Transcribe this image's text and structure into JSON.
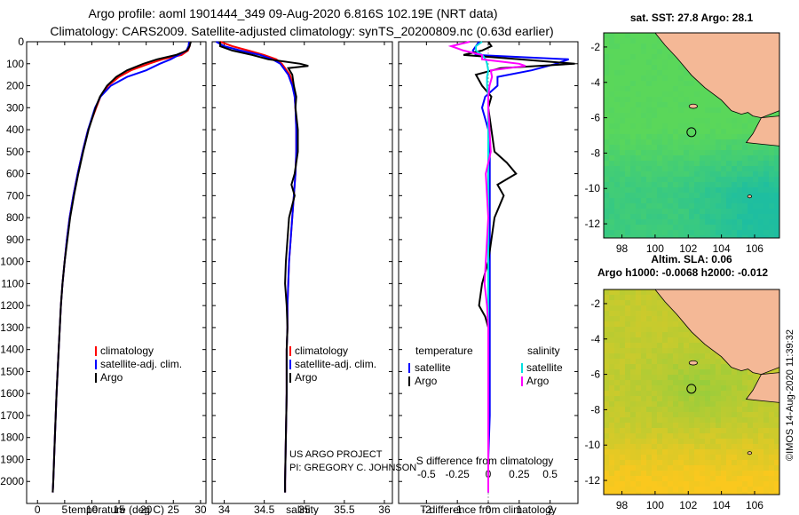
{
  "header": {
    "title": "Argo profile: aoml 1901444_349 09-Aug-2020 6.816S 102.19E (NRT data)",
    "subtitle": "Climatology: CARS2009. Satellite-adjusted climatology: synTS_20200809.nc (0.63d earlier)"
  },
  "credits": {
    "project": "US ARGO PROJECT",
    "pi": "PI: GREGORY C. JOHNSON",
    "imos": "©IMOS 14-Aug-2020 11:39:32"
  },
  "colors": {
    "climatology": "#ff0000",
    "satellite": "#0000ff",
    "argo": "#000000",
    "sat_salinity": "#00e0e0",
    "argo_salinity": "#ff00ff",
    "land": "#f4b896",
    "float_marker": "#000000"
  },
  "maps": [
    {
      "title": "sat. SST: 27.8 Argo: 28.1",
      "lon_ticks": [
        "98",
        "100",
        "102",
        "104",
        "106"
      ],
      "lat_ticks": [
        "-2",
        "-4",
        "-6",
        "-8",
        "-10",
        "-12"
      ],
      "float_lon": 102.19,
      "float_lat": -6.816,
      "field": "sst"
    },
    {
      "title": "Altim. SLA: 0.06",
      "title2": "Argo h1000: -0.0068 h2000: -0.012",
      "lon_ticks": [
        "98",
        "100",
        "102",
        "104",
        "106"
      ],
      "lat_ticks": [
        "-2",
        "-4",
        "-6",
        "-8",
        "-10",
        "-12"
      ],
      "float_lon": 102.19,
      "float_lat": -6.816,
      "field": "sla"
    }
  ],
  "chart_data": [
    {
      "type": "line",
      "xlabel": "temperature (deg C)",
      "ylabel": "",
      "xlim": [
        -2,
        31
      ],
      "ylim": [
        2100,
        0
      ],
      "xticks": [
        "0",
        "5",
        "10",
        "15",
        "20",
        "25",
        "30"
      ],
      "yticks": [
        "0",
        "100",
        "200",
        "300",
        "400",
        "500",
        "600",
        "700",
        "800",
        "900",
        "1000",
        "1100",
        "1200",
        "1300",
        "1400",
        "1500",
        "1600",
        "1700",
        "1800",
        "1900",
        "2000"
      ],
      "legend": [
        "climatology",
        "satellite-adj. clim.",
        "Argo"
      ],
      "legend_placement": "lower-right",
      "series": [
        {
          "name": "climatology",
          "depth": [
            0,
            20,
            40,
            60,
            80,
            100,
            130,
            160,
            200,
            250,
            300,
            400,
            500,
            600,
            700,
            800,
            900,
            1000,
            1100,
            1200,
            1400,
            1600,
            1800,
            2000,
            2050
          ],
          "values": [
            28.1,
            28.0,
            27.7,
            26.5,
            23.0,
            20.5,
            17.2,
            15.0,
            13.0,
            11.6,
            10.8,
            9.3,
            8.3,
            7.4,
            6.6,
            5.9,
            5.4,
            5.0,
            4.6,
            4.3,
            3.9,
            3.5,
            3.2,
            2.9,
            2.8
          ]
        },
        {
          "name": "satellite-adj. clim.",
          "depth": [
            0,
            20,
            40,
            60,
            80,
            100,
            130,
            160,
            200,
            250,
            300,
            400,
            500,
            600,
            700,
            800,
            900,
            1000,
            1100,
            1200,
            1400,
            1600,
            1800,
            2000,
            2050
          ],
          "values": [
            27.9,
            27.8,
            27.4,
            26.0,
            24.5,
            22.5,
            20.0,
            16.5,
            13.5,
            11.6,
            10.6,
            9.3,
            8.3,
            7.4,
            6.6,
            5.9,
            5.4,
            5.0,
            4.6,
            4.3,
            3.9,
            3.5,
            3.2,
            2.9,
            2.8
          ]
        },
        {
          "name": "Argo",
          "depth": [
            0,
            20,
            40,
            60,
            80,
            100,
            130,
            160,
            200,
            250,
            300,
            400,
            500,
            600,
            700,
            800,
            900,
            1000,
            1100,
            1200,
            1400,
            1600,
            1800,
            2000,
            2050
          ],
          "values": [
            28.2,
            28.0,
            27.5,
            25.5,
            22.0,
            19.5,
            16.5,
            14.5,
            12.8,
            11.5,
            10.7,
            9.4,
            8.4,
            7.5,
            6.7,
            6.0,
            5.5,
            5.0,
            4.6,
            4.3,
            3.9,
            3.5,
            3.2,
            2.9,
            2.8
          ]
        }
      ]
    },
    {
      "type": "line",
      "xlabel": "salinity",
      "ylabel": "",
      "xlim": [
        33.85,
        36.1
      ],
      "ylim": [
        2100,
        0
      ],
      "xticks": [
        "34",
        "34.5",
        "35",
        "35.5",
        "36"
      ],
      "legend": [
        "climatology",
        "satellite-adj. clim.",
        "Argo"
      ],
      "legend_placement": "lower-right",
      "series": [
        {
          "name": "climatology",
          "depth": [
            0,
            20,
            40,
            60,
            80,
            100,
            120,
            150,
            200,
            250,
            300,
            400,
            500,
            600,
            700,
            800,
            900,
            1000,
            1100,
            1200,
            1300,
            1400,
            1600,
            1800,
            2000,
            2050
          ],
          "values": [
            33.95,
            34.1,
            34.3,
            34.5,
            34.65,
            34.72,
            34.76,
            34.82,
            34.86,
            34.88,
            34.89,
            34.9,
            34.9,
            34.89,
            34.87,
            34.85,
            34.83,
            34.81,
            34.8,
            34.79,
            34.79,
            34.78,
            34.78,
            34.77,
            34.76,
            34.76
          ]
        },
        {
          "name": "satellite-adj. clim.",
          "depth": [
            0,
            20,
            40,
            60,
            80,
            100,
            120,
            150,
            200,
            250,
            300,
            400,
            500,
            600,
            700,
            800,
            900,
            1000,
            1100,
            1200,
            1300,
            1400,
            1600,
            1800,
            2000,
            2050
          ],
          "values": [
            33.9,
            34.0,
            34.2,
            34.45,
            34.6,
            34.7,
            34.74,
            34.8,
            34.85,
            34.88,
            34.89,
            34.9,
            34.9,
            34.89,
            34.87,
            34.85,
            34.83,
            34.81,
            34.8,
            34.79,
            34.79,
            34.78,
            34.78,
            34.77,
            34.76,
            34.76
          ]
        },
        {
          "name": "Argo",
          "depth": [
            0,
            20,
            40,
            60,
            80,
            100,
            110,
            120,
            150,
            200,
            250,
            300,
            400,
            500,
            600,
            650,
            700,
            800,
            900,
            1000,
            1100,
            1200,
            1300,
            1400,
            1600,
            1800,
            2000,
            2050
          ],
          "values": [
            33.95,
            33.95,
            34.1,
            34.35,
            34.55,
            34.95,
            35.05,
            34.8,
            34.85,
            34.87,
            34.9,
            34.89,
            34.92,
            34.92,
            34.88,
            34.84,
            34.88,
            34.81,
            34.79,
            34.77,
            34.76,
            34.78,
            34.79,
            34.78,
            34.78,
            34.77,
            34.76,
            34.76
          ]
        }
      ]
    },
    {
      "type": "line",
      "xlabel": "T difference from climatology",
      "xlabel_top": "S difference from climatology",
      "ylabel": "",
      "xlim": [
        -2.9,
        2.9
      ],
      "ylim": [
        2100,
        0
      ],
      "xticks": [
        "-2",
        "-1",
        "0",
        "1",
        "2"
      ],
      "xticks_top": [
        "-0.5",
        "-0.25",
        "0",
        "0.25",
        "0.5"
      ],
      "legend_temperature_title": "temperature",
      "legend_salinity_title": "salinity",
      "legend_temperature": [
        "satellite",
        "Argo"
      ],
      "legend_salinity": [
        "satellite",
        "Argo"
      ],
      "legend_placement": "lower-center",
      "series": [
        {
          "name": "satellite",
          "group": "temperature",
          "depth": [
            0,
            20,
            40,
            60,
            80,
            100,
            130,
            160,
            200,
            250,
            300,
            400,
            500,
            700,
            900,
            1100,
            1300,
            1500,
            1700,
            1900,
            2050
          ],
          "values": [
            -0.3,
            -0.4,
            -0.5,
            -0.4,
            2.6,
            2.2,
            1.4,
            0.3,
            0.3,
            -0.1,
            -0.2,
            0.0,
            0.05,
            0.05,
            0.05,
            0.05,
            0.05,
            0.05,
            0.05,
            0.0,
            0.0
          ]
        },
        {
          "name": "Argo",
          "group": "temperature",
          "depth": [
            0,
            20,
            40,
            60,
            80,
            100,
            120,
            150,
            200,
            250,
            300,
            400,
            500,
            550,
            600,
            650,
            700,
            800,
            900,
            1000,
            1100,
            1200,
            1250,
            1300,
            1500,
            1700,
            1900,
            2050
          ],
          "values": [
            0.0,
            0.1,
            -0.2,
            -0.8,
            1.0,
            2.8,
            0.4,
            -0.4,
            -0.2,
            0.1,
            0.0,
            0.1,
            0.2,
            0.6,
            0.9,
            0.3,
            0.5,
            0.2,
            0.1,
            0.0,
            -0.2,
            -0.3,
            -0.1,
            0.0,
            0.0,
            0.0,
            0.0,
            0.0
          ]
        },
        {
          "name": "satellite",
          "group": "salinity",
          "depth": [
            0,
            20,
            40,
            60,
            80,
            100,
            130,
            160,
            200,
            250,
            300,
            400,
            500,
            700,
            900,
            1100,
            1300,
            1500,
            1700,
            1900,
            2050
          ],
          "values": [
            -0.05,
            -0.1,
            -0.1,
            -0.05,
            -0.02,
            -0.01,
            0.0,
            -0.01,
            -0.01,
            0.0,
            0.0,
            0.0,
            0.0,
            0.0,
            0.0,
            0.0,
            0.0,
            0.0,
            0.0,
            0.0,
            0.0
          ]
        },
        {
          "name": "Argo",
          "group": "salinity",
          "depth": [
            0,
            20,
            40,
            60,
            80,
            100,
            110,
            130,
            160,
            200,
            250,
            300,
            400,
            500,
            600,
            700,
            800,
            900,
            1000,
            1100,
            1200,
            1300,
            1400,
            1600,
            1800,
            2000,
            2050
          ],
          "values": [
            -0.15,
            -0.3,
            -0.2,
            -0.05,
            -0.05,
            0.25,
            0.3,
            0.02,
            0.03,
            0.01,
            0.0,
            0.0,
            0.01,
            0.02,
            -0.02,
            -0.01,
            0.0,
            -0.01,
            -0.02,
            -0.03,
            -0.01,
            0.0,
            0.0,
            0.0,
            0.0,
            0.0,
            0.0
          ]
        }
      ]
    }
  ]
}
